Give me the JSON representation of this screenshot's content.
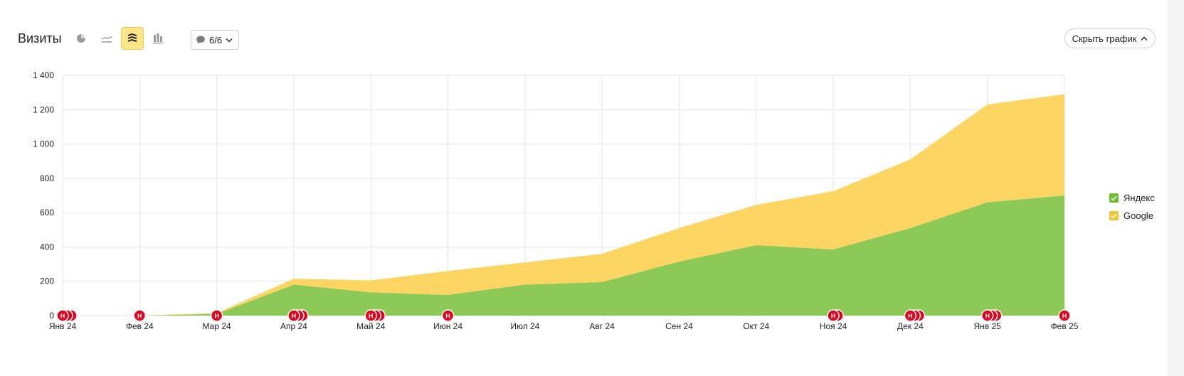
{
  "header": {
    "title": "Визиты",
    "notes_count": "6/6",
    "hide_chart_label": "Скрыть график"
  },
  "toolbar": {
    "buttons": [
      {
        "name": "pie-chart-icon",
        "active": false
      },
      {
        "name": "line-chart-icon",
        "active": false
      },
      {
        "name": "stacked-area-icon",
        "active": true
      },
      {
        "name": "bar-chart-icon",
        "active": false
      }
    ]
  },
  "colors": {
    "yandex": "#8cc957",
    "google": "#fcd562",
    "marker": "#e3001b",
    "grid": "#e6e6e6",
    "legend_yandex": "#6cbf2c",
    "legend_google": "#f5c433"
  },
  "chart_data": {
    "type": "area",
    "stacked": true,
    "title": "",
    "xlabel": "",
    "ylabel": "",
    "categories": [
      "Янв 24",
      "Фев 24",
      "Мар 24",
      "Апр 24",
      "Май 24",
      "Июн 24",
      "Июл 24",
      "Авг 24",
      "Сен 24",
      "Окт 24",
      "Ноя 24",
      "Дек 24",
      "Янв 25",
      "Фев 25"
    ],
    "series": [
      {
        "name": "Яндекс",
        "values": [
          0,
          0,
          10,
          180,
          135,
          120,
          180,
          195,
          315,
          410,
          385,
          510,
          660,
          700
        ]
      },
      {
        "name": "Google",
        "values": [
          0,
          0,
          5,
          35,
          70,
          140,
          130,
          165,
          195,
          235,
          340,
          400,
          570,
          590
        ]
      }
    ],
    "ylim": [
      0,
      1400
    ],
    "yticks": [
      0,
      200,
      400,
      600,
      800,
      1000,
      1200,
      1400
    ],
    "ytick_labels": [
      "0",
      "200",
      "400",
      "600",
      "800",
      "1 000",
      "1 200",
      "1 400"
    ],
    "grid": true,
    "legend_position": "right",
    "annotation_marker_label": "Н",
    "annotation_counts": [
      3,
      1,
      1,
      3,
      3,
      1,
      0,
      0,
      0,
      0,
      2,
      3,
      3,
      1
    ]
  }
}
